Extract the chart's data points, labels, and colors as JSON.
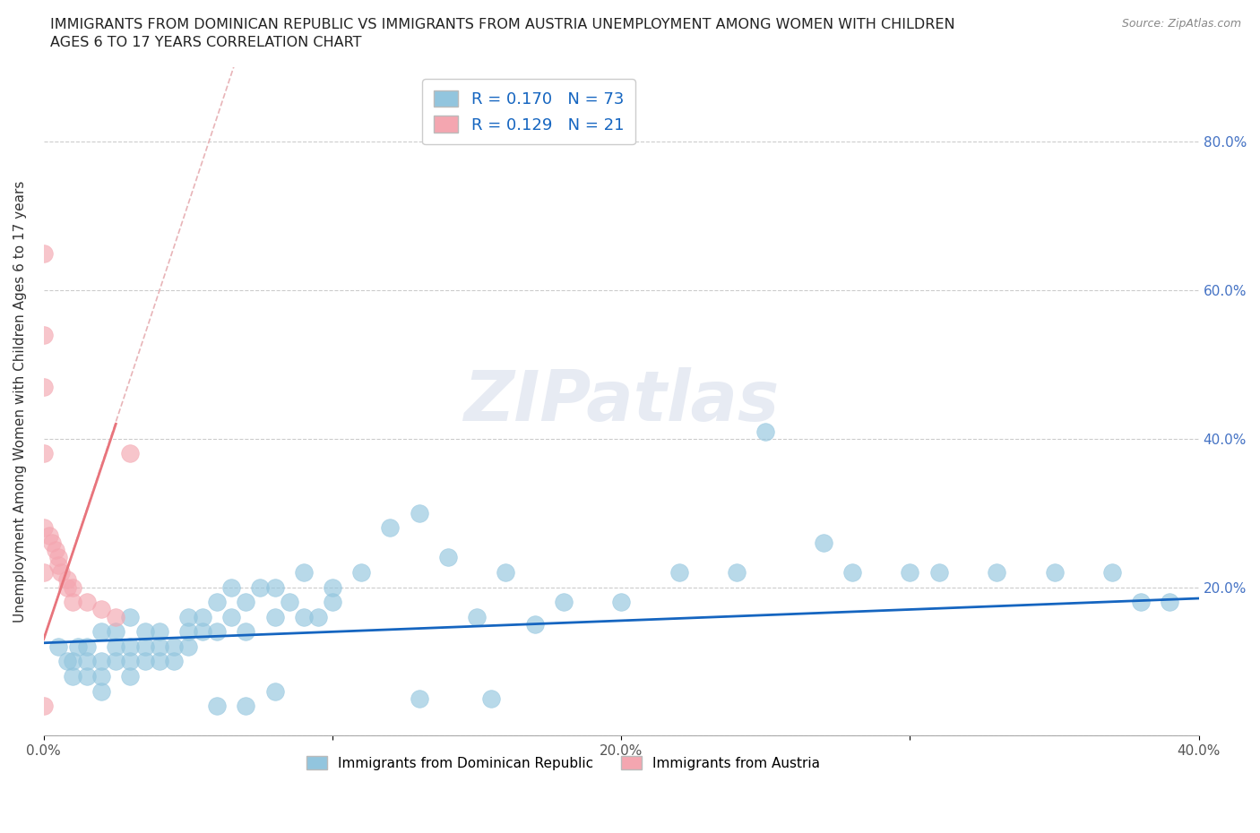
{
  "title_line1": "IMMIGRANTS FROM DOMINICAN REPUBLIC VS IMMIGRANTS FROM AUSTRIA UNEMPLOYMENT AMONG WOMEN WITH CHILDREN",
  "title_line2": "AGES 6 TO 17 YEARS CORRELATION CHART",
  "source": "Source: ZipAtlas.com",
  "ylabel": "Unemployment Among Women with Children Ages 6 to 17 years",
  "xlim": [
    0.0,
    0.4
  ],
  "ylim": [
    0.0,
    0.9
  ],
  "xticks": [
    0.0,
    0.1,
    0.2,
    0.3,
    0.4
  ],
  "xtick_labels": [
    "0.0%",
    "",
    "20.0%",
    "",
    "40.0%"
  ],
  "ytick_positions": [
    0.0,
    0.2,
    0.4,
    0.6,
    0.8
  ],
  "ytick_labels_right": [
    "",
    "20.0%",
    "40.0%",
    "60.0%",
    "80.0%"
  ],
  "color_dr": "#92C5DE",
  "color_austria": "#F4A6B0",
  "trendline_dr_color": "#1565C0",
  "trendline_austria_color": "#E8747C",
  "watermark": "ZIPatlas",
  "legend_r_dr": "0.170",
  "legend_n_dr": "73",
  "legend_r_austria": "0.129",
  "legend_n_austria": "21",
  "dr_x": [
    0.005,
    0.008,
    0.01,
    0.01,
    0.012,
    0.015,
    0.015,
    0.015,
    0.02,
    0.02,
    0.02,
    0.02,
    0.025,
    0.025,
    0.025,
    0.03,
    0.03,
    0.03,
    0.03,
    0.035,
    0.035,
    0.035,
    0.04,
    0.04,
    0.04,
    0.045,
    0.045,
    0.05,
    0.05,
    0.05,
    0.055,
    0.055,
    0.06,
    0.06,
    0.065,
    0.065,
    0.07,
    0.07,
    0.075,
    0.08,
    0.08,
    0.085,
    0.09,
    0.09,
    0.1,
    0.1,
    0.11,
    0.12,
    0.13,
    0.14,
    0.15,
    0.16,
    0.18,
    0.2,
    0.22,
    0.24,
    0.25,
    0.27,
    0.28,
    0.3,
    0.31,
    0.33,
    0.35,
    0.37,
    0.38,
    0.39,
    0.06,
    0.07,
    0.08,
    0.095,
    0.13,
    0.155,
    0.17
  ],
  "dr_y": [
    0.12,
    0.1,
    0.08,
    0.1,
    0.12,
    0.08,
    0.1,
    0.12,
    0.06,
    0.08,
    0.1,
    0.14,
    0.1,
    0.12,
    0.14,
    0.08,
    0.1,
    0.12,
    0.16,
    0.1,
    0.12,
    0.14,
    0.1,
    0.12,
    0.14,
    0.1,
    0.12,
    0.12,
    0.14,
    0.16,
    0.14,
    0.16,
    0.14,
    0.18,
    0.16,
    0.2,
    0.14,
    0.18,
    0.2,
    0.16,
    0.2,
    0.18,
    0.16,
    0.22,
    0.18,
    0.2,
    0.22,
    0.28,
    0.3,
    0.24,
    0.16,
    0.22,
    0.18,
    0.18,
    0.22,
    0.22,
    0.41,
    0.26,
    0.22,
    0.22,
    0.22,
    0.22,
    0.22,
    0.22,
    0.18,
    0.18,
    0.04,
    0.04,
    0.06,
    0.16,
    0.05,
    0.05,
    0.15
  ],
  "austria_x": [
    0.0,
    0.0,
    0.0,
    0.0,
    0.0,
    0.0,
    0.002,
    0.003,
    0.004,
    0.005,
    0.005,
    0.006,
    0.008,
    0.008,
    0.01,
    0.01,
    0.015,
    0.02,
    0.025,
    0.03,
    0.0
  ],
  "austria_y": [
    0.65,
    0.54,
    0.47,
    0.38,
    0.28,
    0.22,
    0.27,
    0.26,
    0.25,
    0.24,
    0.23,
    0.22,
    0.21,
    0.2,
    0.2,
    0.18,
    0.18,
    0.17,
    0.16,
    0.38,
    0.04
  ]
}
